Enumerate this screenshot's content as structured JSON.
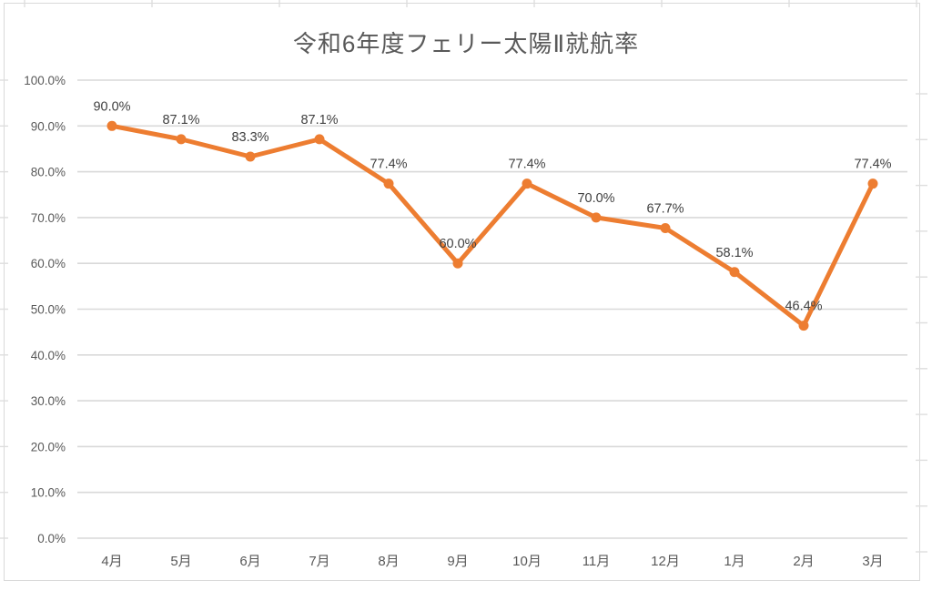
{
  "chart_data": {
    "type": "line",
    "title": "令和6年度フェリー太陽Ⅱ就航率",
    "categories": [
      "4月",
      "5月",
      "6月",
      "7月",
      "8月",
      "9月",
      "10月",
      "11月",
      "12月",
      "1月",
      "2月",
      "3月"
    ],
    "values": [
      90.0,
      87.1,
      83.3,
      87.1,
      77.4,
      60.0,
      77.4,
      70.0,
      67.7,
      58.1,
      46.4,
      77.4
    ],
    "data_labels": [
      "90.0%",
      "87.1%",
      "83.3%",
      "87.1%",
      "77.4%",
      "60.0%",
      "77.4%",
      "70.0%",
      "67.7%",
      "58.1%",
      "46.4%",
      "77.4%"
    ],
    "y_tick_labels": [
      "100.0%",
      "90.0%",
      "80.0%",
      "70.0%",
      "60.0%",
      "50.0%",
      "40.0%",
      "30.0%",
      "20.0%",
      "10.0%",
      "0.0%"
    ],
    "y_tick_values": [
      100,
      90,
      80,
      70,
      60,
      50,
      40,
      30,
      20,
      10,
      0
    ],
    "ylim": [
      0,
      100
    ],
    "xlabel": "",
    "ylabel": "",
    "grid": true,
    "legend": "none",
    "marker": "circle"
  },
  "colors": {
    "line": "#ED7D31",
    "marker": "#ED7D31",
    "title": "#595959",
    "axis_text": "#595959",
    "data_label": "#404040",
    "gridline": "#D9D9D9",
    "frame": "#D9D9D9",
    "edge_tick": "#DEDEDE"
  }
}
